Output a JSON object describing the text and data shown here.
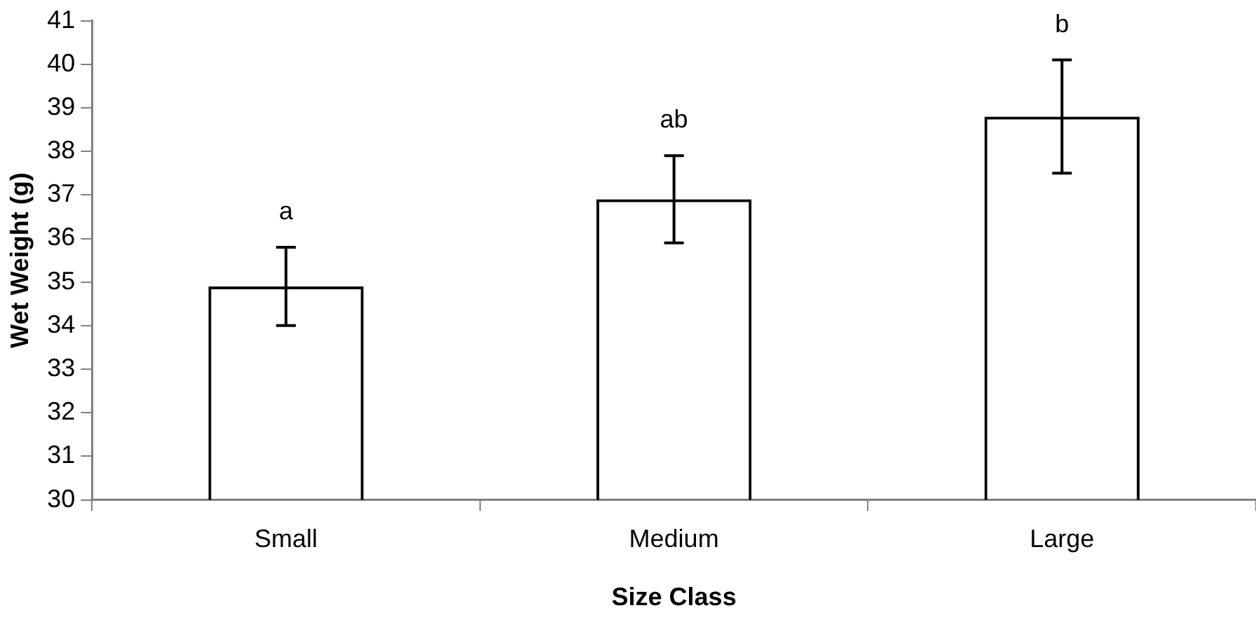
{
  "chart_data": {
    "type": "bar",
    "xlabel": "Size Class",
    "ylabel": "Wet Weight (g)",
    "categories": [
      "Small",
      "Medium",
      "Large"
    ],
    "values": [
      34.9,
      36.9,
      38.8
    ],
    "errors": [
      0.9,
      1.0,
      1.3
    ],
    "color": "#000000",
    "ylim": [
      30,
      41
    ],
    "yticks": [
      30,
      31,
      32,
      33,
      34,
      35,
      36,
      37,
      38,
      39,
      40,
      41
    ],
    "annotations": [
      "a",
      "ab",
      "b"
    ]
  }
}
